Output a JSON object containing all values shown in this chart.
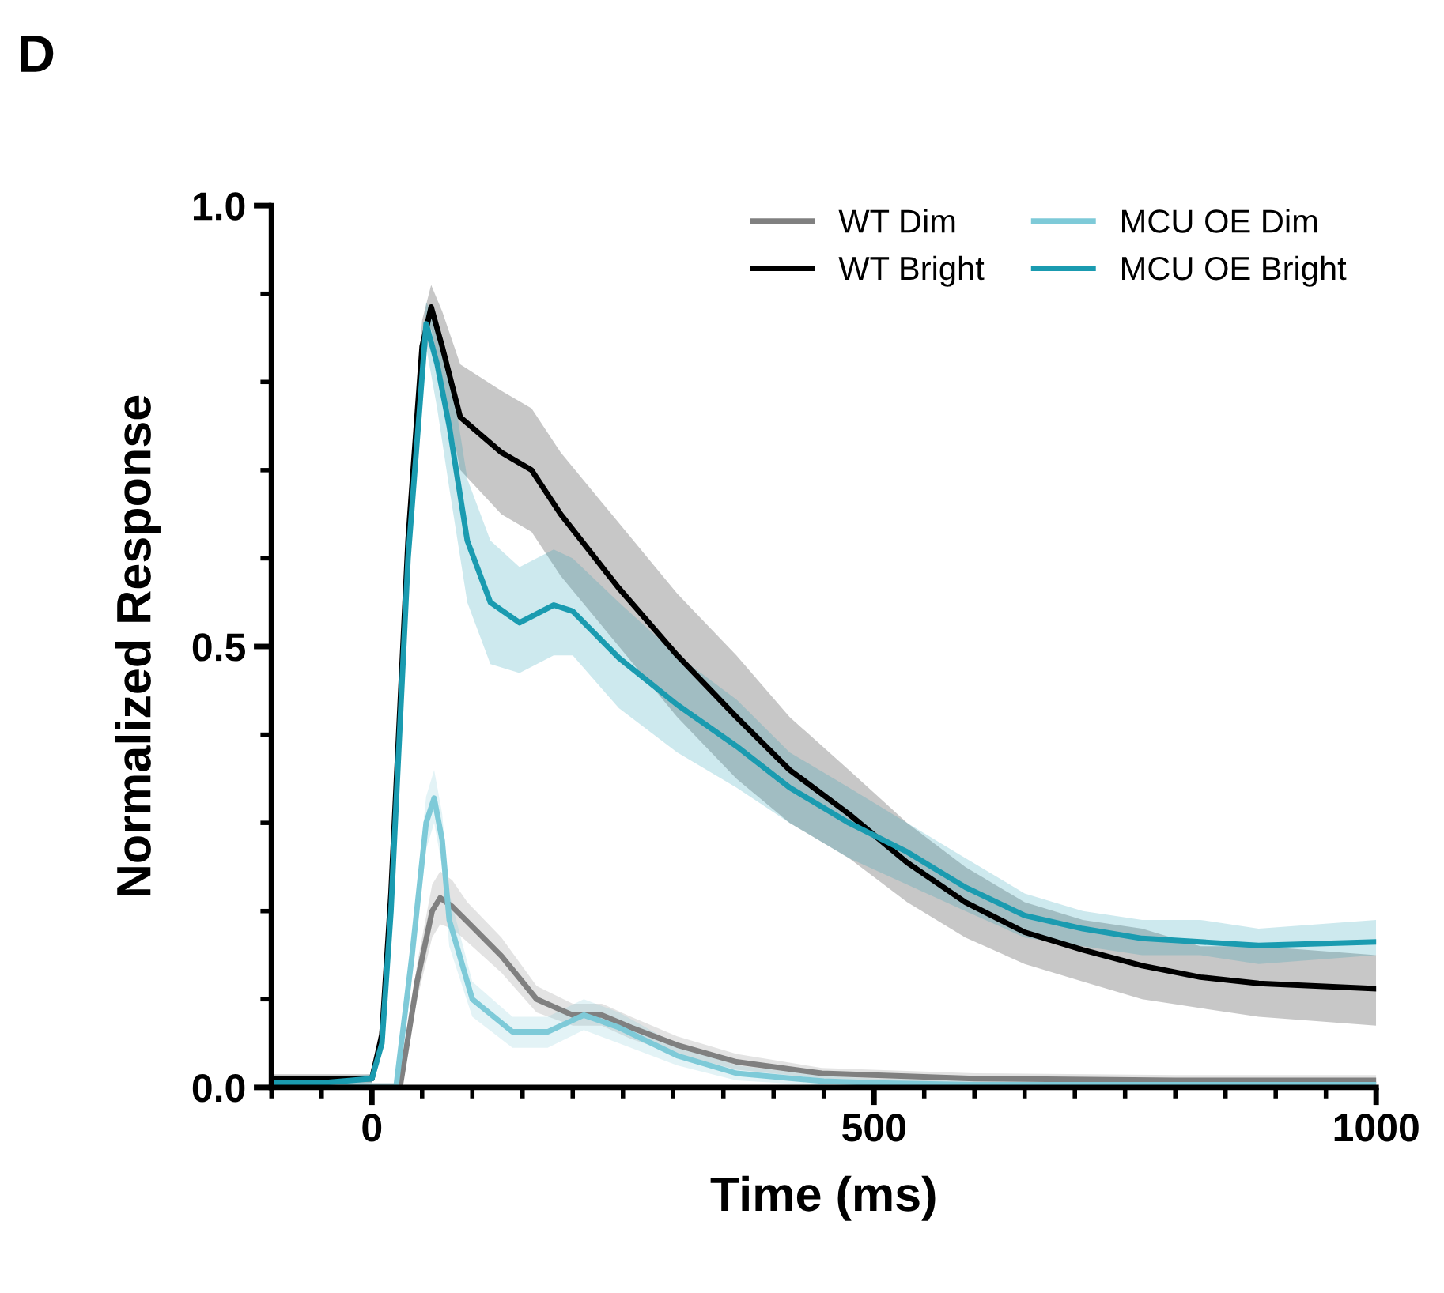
{
  "chart_data": {
    "type": "line",
    "xlabel": "Time (ms)",
    "ylabel": "Normalized Response",
    "annotations": [
      "D"
    ],
    "xlim": [
      -100,
      1000
    ],
    "xticks": [
      0,
      500,
      1000
    ],
    "ylim": [
      0,
      1
    ],
    "yticks": [
      {
        "value": 0,
        "label": "0.0"
      },
      {
        "value": 0.5,
        "label": "0.5"
      },
      {
        "value": 1,
        "label": "1.0"
      }
    ],
    "grid": false,
    "legend": "top right",
    "marker": "none",
    "line_style": "solid",
    "series": [
      {
        "name": "WT Dim",
        "color": "#808080",
        "x": [
          -100,
          0,
          28,
          45,
          60,
          68,
          80,
          95,
          129,
          164,
          200,
          229,
          258,
          304,
          363,
          448,
          600,
          800,
          1000
        ],
        "values": [
          0,
          0,
          0,
          0.12,
          0.2,
          0.215,
          0.205,
          0.188,
          0.149,
          0.1,
          0.082,
          0.082,
          0.068,
          0.048,
          0.029,
          0.016,
          0.01,
          0.008,
          0.008
        ],
        "lower": [
          0,
          0,
          0,
          0.1,
          0.17,
          0.185,
          0.18,
          0.165,
          0.13,
          0.085,
          0.07,
          0.07,
          0.055,
          0.038,
          0.02,
          0.01,
          0.004,
          0.002,
          0.002
        ],
        "upper": [
          0.005,
          0.005,
          0.005,
          0.14,
          0.23,
          0.245,
          0.235,
          0.21,
          0.17,
          0.115,
          0.095,
          0.095,
          0.08,
          0.058,
          0.038,
          0.022,
          0.016,
          0.014,
          0.014
        ]
      },
      {
        "name": "WT Bright",
        "color": "#000000",
        "x": [
          -100,
          -50,
          0,
          10,
          19,
          36,
          50,
          59,
          70,
          88,
          129,
          159,
          188,
          246,
          304,
          363,
          416,
          475,
          533,
          591,
          650,
          708,
          767,
          825,
          883,
          1000
        ],
        "values": [
          0.01,
          0.01,
          0.01,
          0.06,
          0.22,
          0.62,
          0.84,
          0.885,
          0.84,
          0.76,
          0.72,
          0.7,
          0.65,
          0.566,
          0.49,
          0.42,
          0.36,
          0.31,
          0.255,
          0.21,
          0.176,
          0.156,
          0.138,
          0.125,
          0.118,
          0.112
        ],
        "lower": [
          0.005,
          0.005,
          0.005,
          0.04,
          0.19,
          0.58,
          0.81,
          0.86,
          0.8,
          0.7,
          0.65,
          0.63,
          0.58,
          0.5,
          0.42,
          0.35,
          0.3,
          0.26,
          0.21,
          0.17,
          0.14,
          0.12,
          0.1,
          0.09,
          0.08,
          0.07
        ],
        "upper": [
          0.015,
          0.015,
          0.015,
          0.08,
          0.25,
          0.66,
          0.87,
          0.91,
          0.88,
          0.82,
          0.79,
          0.77,
          0.72,
          0.64,
          0.56,
          0.49,
          0.42,
          0.36,
          0.3,
          0.25,
          0.21,
          0.19,
          0.18,
          0.16,
          0.16,
          0.15
        ]
      },
      {
        "name": "MCU OE Dim",
        "color": "#7ecad8",
        "x": [
          -100,
          0,
          24,
          40,
          54,
          62,
          70,
          77,
          100,
          140,
          175,
          211,
          246,
          304,
          363,
          450,
          500,
          600,
          800,
          1000
        ],
        "values": [
          0,
          0,
          0,
          0.15,
          0.3,
          0.328,
          0.28,
          0.19,
          0.1,
          0.063,
          0.063,
          0.082,
          0.068,
          0.036,
          0.016,
          0.007,
          0.005,
          0.003,
          0.003,
          0.003
        ],
        "lower": [
          0,
          0,
          0,
          0.13,
          0.27,
          0.3,
          0.25,
          0.16,
          0.08,
          0.045,
          0.045,
          0.065,
          0.05,
          0.025,
          0.008,
          0.002,
          0,
          0,
          0,
          0
        ],
        "upper": [
          0.005,
          0.005,
          0.005,
          0.17,
          0.33,
          0.36,
          0.31,
          0.22,
          0.12,
          0.08,
          0.08,
          0.1,
          0.085,
          0.048,
          0.025,
          0.013,
          0.01,
          0.008,
          0.008,
          0.008
        ]
      },
      {
        "name": "MCU OE Bright",
        "color": "#1a9bb0",
        "x": [
          -100,
          -50,
          0,
          10,
          19,
          36,
          54,
          65,
          77,
          95,
          118,
          147,
          181,
          200,
          246,
          304,
          363,
          416,
          475,
          533,
          591,
          650,
          708,
          767,
          825,
          883,
          1000
        ],
        "values": [
          0.005,
          0.005,
          0.01,
          0.05,
          0.2,
          0.6,
          0.866,
          0.82,
          0.75,
          0.62,
          0.55,
          0.527,
          0.547,
          0.54,
          0.487,
          0.434,
          0.387,
          0.34,
          0.3,
          0.267,
          0.227,
          0.195,
          0.18,
          0.169,
          0.165,
          0.161,
          0.165
        ],
        "lower": [
          0,
          0,
          0.005,
          0.04,
          0.18,
          0.57,
          0.84,
          0.77,
          0.68,
          0.55,
          0.48,
          0.47,
          0.49,
          0.49,
          0.43,
          0.38,
          0.34,
          0.3,
          0.26,
          0.23,
          0.2,
          0.17,
          0.16,
          0.15,
          0.15,
          0.14,
          0.15
        ],
        "upper": [
          0.01,
          0.01,
          0.015,
          0.06,
          0.22,
          0.63,
          0.89,
          0.87,
          0.82,
          0.69,
          0.62,
          0.59,
          0.61,
          0.6,
          0.55,
          0.49,
          0.44,
          0.38,
          0.34,
          0.3,
          0.26,
          0.22,
          0.2,
          0.19,
          0.19,
          0.18,
          0.19
        ]
      }
    ]
  }
}
